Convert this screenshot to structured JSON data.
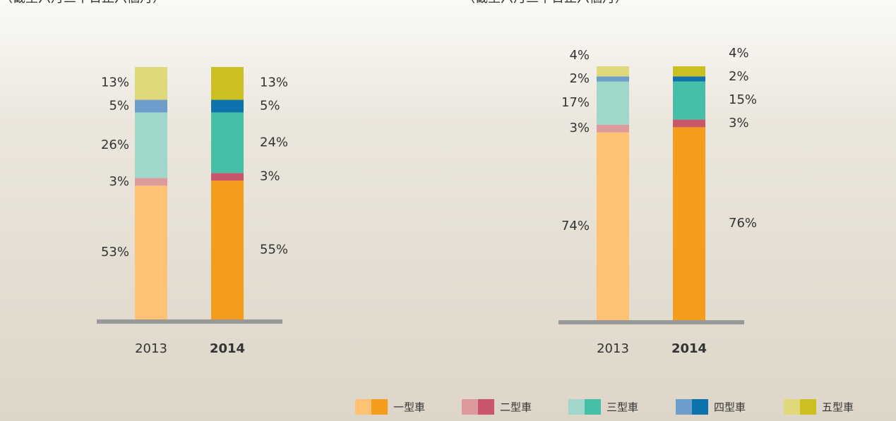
{
  "chart_data": [
    {
      "type": "stacked-bar",
      "subtitle": "（截至六月三十日止六個月）",
      "categories": [
        "2013",
        "2014"
      ],
      "ylim": [
        0,
        100
      ],
      "series": [
        {
          "name": "一型車",
          "colors": [
            "#fec274",
            "#f69c1c"
          ],
          "values": [
            53,
            55
          ],
          "value_labels": [
            "53%",
            "55%"
          ]
        },
        {
          "name": "二型車",
          "colors": [
            "#dd9a9c",
            "#c9566a"
          ],
          "values": [
            3,
            3
          ],
          "value_labels": [
            "3%",
            "3%"
          ]
        },
        {
          "name": "三型車",
          "colors": [
            "#9fd8cb",
            "#45bfa8"
          ],
          "values": [
            26,
            24
          ],
          "value_labels": [
            "26%",
            "24%"
          ]
        },
        {
          "name": "四型車",
          "colors": [
            "#6d9dca",
            "#0e72ad"
          ],
          "values": [
            5,
            5
          ],
          "value_labels": [
            "5%",
            "5%"
          ]
        },
        {
          "name": "五型車",
          "colors": [
            "#e0d97c",
            "#cbbf22"
          ],
          "values": [
            13,
            13
          ],
          "value_labels": [
            "13%",
            "13%"
          ]
        }
      ]
    },
    {
      "type": "stacked-bar",
      "subtitle": "（截至六月三十日止六個月）",
      "categories": [
        "2013",
        "2014"
      ],
      "ylim": [
        0,
        100
      ],
      "series": [
        {
          "colors": [
            "#fec274",
            "#f69c1c"
          ],
          "values": [
            74,
            76
          ],
          "value_labels": [
            "74%",
            "76%"
          ]
        },
        {
          "colors": [
            "#dd9a9c",
            "#c9566a"
          ],
          "values": [
            3,
            3
          ],
          "value_labels": [
            "3%",
            "3%"
          ]
        },
        {
          "colors": [
            "#9fd8cb",
            "#45bfa8"
          ],
          "values": [
            17,
            15
          ],
          "value_labels": [
            "17%",
            "15%"
          ]
        },
        {
          "colors": [
            "#6d9dca",
            "#0e72ad"
          ],
          "values": [
            2,
            2
          ],
          "value_labels": [
            "2%",
            "2%"
          ]
        },
        {
          "colors": [
            "#e0d97c",
            "#cbbf22"
          ],
          "values": [
            4,
            4
          ],
          "value_labels": [
            "4%",
            "4%"
          ]
        }
      ]
    }
  ]
}
